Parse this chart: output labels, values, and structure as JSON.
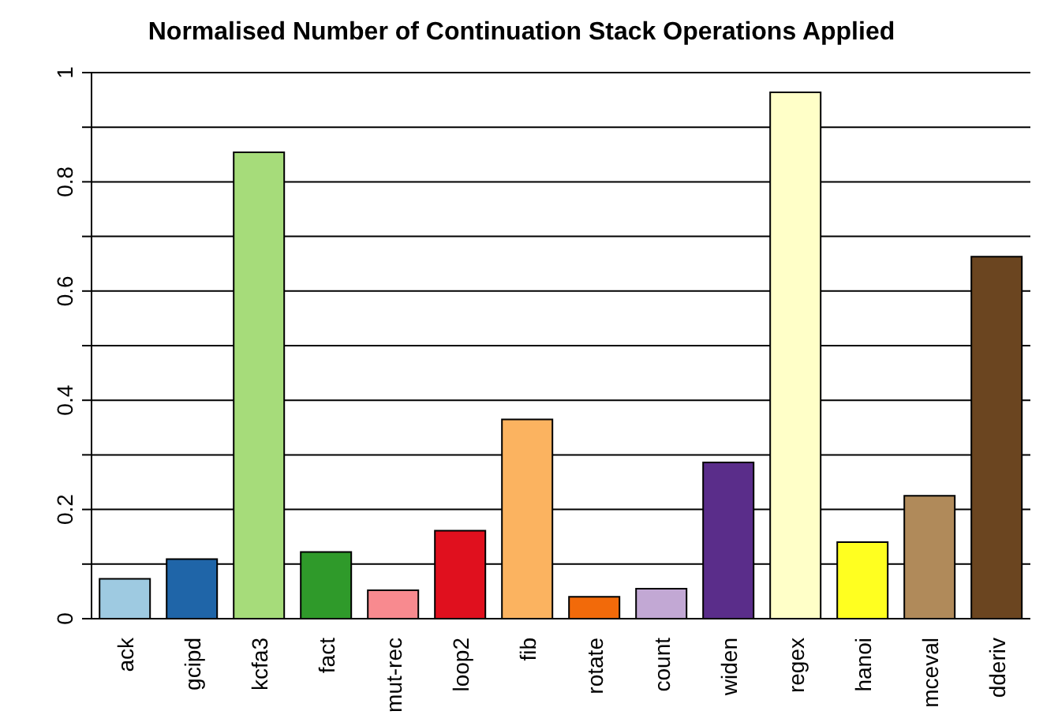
{
  "chart_data": {
    "type": "bar",
    "title": "Normalised Number of Continuation Stack Operations Applied",
    "categories": [
      "ack",
      "gcipd",
      "kcfa3",
      "fact",
      "mut-rec",
      "loop2",
      "fib",
      "rotate",
      "count",
      "widen",
      "regex",
      "hanoi",
      "mceval",
      "dderiv"
    ],
    "values": [
      0.073,
      0.109,
      0.854,
      0.122,
      0.052,
      0.161,
      0.365,
      0.04,
      0.055,
      0.286,
      0.964,
      0.14,
      0.225,
      0.663
    ],
    "colors": [
      "#9ecae1",
      "#1f65a8",
      "#a6dc7a",
      "#2f9a2a",
      "#f88a8f",
      "#e0101e",
      "#fbb360",
      "#f26a0a",
      "#c2a8d4",
      "#5a2d8a",
      "#ffffc8",
      "#ffff20",
      "#b08a5a",
      "#6b4520"
    ],
    "ylim": [
      0,
      1
    ],
    "yticks": [
      0,
      {
        "value": 0.1,
        "label": null
      },
      0.2,
      {
        "value": 0.3,
        "label": null
      },
      0.4,
      {
        "value": 0.5,
        "label": null
      },
      0.6,
      {
        "value": 0.7,
        "label": null
      },
      0.8,
      {
        "value": 0.9,
        "label": null
      },
      1
    ],
    "grid": "y"
  }
}
